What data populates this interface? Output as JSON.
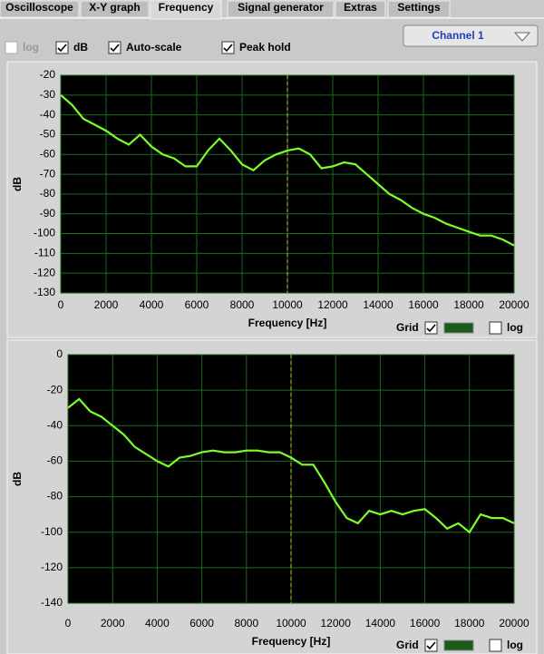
{
  "tabs": [
    {
      "label": "Oscilloscope",
      "active": false
    },
    {
      "label": "X-Y graph",
      "active": false
    },
    {
      "label": "Frequency",
      "active": true
    },
    {
      "label": "Signal generator",
      "active": false
    },
    {
      "label": "Extras",
      "active": false
    },
    {
      "label": "Settings",
      "active": false
    }
  ],
  "controls": [
    {
      "label": "log",
      "checked": false,
      "enabled": false
    },
    {
      "label": "dB",
      "checked": true,
      "enabled": true
    },
    {
      "label": "Auto-scale",
      "checked": true,
      "enabled": true
    },
    {
      "label": "Peak hold",
      "checked": true,
      "enabled": true
    }
  ],
  "channel_select": "Channel 1",
  "chart_data": [
    {
      "type": "line",
      "xlabel": "Frequency [Hz]",
      "ylabel": "dB",
      "color": "#7dff2a",
      "xlim": [
        0,
        20000
      ],
      "ylim": [
        -130,
        -20
      ],
      "xticks": [
        0,
        2000,
        4000,
        6000,
        8000,
        10000,
        12000,
        14000,
        16000,
        18000,
        20000
      ],
      "yticks": [
        -20,
        -30,
        -40,
        -50,
        -60,
        -70,
        -80,
        -90,
        -100,
        -110,
        -120,
        -130
      ],
      "grid": true,
      "cursor": 10000,
      "grid_option": {
        "label": "Grid",
        "checked": true
      },
      "log_option": {
        "label": "log",
        "checked": false
      },
      "x": [
        0,
        500,
        1000,
        1500,
        2000,
        2500,
        3000,
        3500,
        4000,
        4500,
        5000,
        5500,
        6000,
        6500,
        7000,
        7500,
        8000,
        8500,
        9000,
        9500,
        10000,
        10500,
        11000,
        11500,
        12000,
        12500,
        13000,
        13500,
        14000,
        14500,
        15000,
        15500,
        16000,
        16500,
        17000,
        17500,
        18000,
        18500,
        19000,
        19500,
        20000
      ],
      "values": [
        -30,
        -35,
        -42,
        -45,
        -48,
        -52,
        -55,
        -50,
        -56,
        -60,
        -62,
        -66,
        -66,
        -58,
        -52,
        -58,
        -65,
        -68,
        -63,
        -60,
        -58,
        -57,
        -60,
        -67,
        -66,
        -64,
        -65,
        -70,
        -75,
        -80,
        -83,
        -87,
        -90,
        -92,
        -95,
        -97,
        -99,
        -101,
        -101,
        -103,
        -106
      ]
    },
    {
      "type": "line",
      "xlabel": "Frequency [Hz]",
      "ylabel": "dB",
      "color": "#7dff2a",
      "xlim": [
        0,
        20000
      ],
      "ylim": [
        -140,
        0
      ],
      "xticks": [
        0,
        2000,
        4000,
        6000,
        8000,
        10000,
        12000,
        14000,
        16000,
        18000,
        20000
      ],
      "yticks": [
        0,
        -20,
        -40,
        -60,
        -80,
        -100,
        -120,
        -140
      ],
      "grid": true,
      "cursor": 10000,
      "grid_option": {
        "label": "Grid",
        "checked": true
      },
      "log_option": {
        "label": "log",
        "checked": false
      },
      "x": [
        0,
        500,
        1000,
        1500,
        2000,
        2500,
        3000,
        3500,
        4000,
        4500,
        5000,
        5500,
        6000,
        6500,
        7000,
        7500,
        8000,
        8500,
        9000,
        9500,
        10000,
        10500,
        11000,
        11500,
        12000,
        12500,
        13000,
        13500,
        14000,
        14500,
        15000,
        15500,
        16000,
        16500,
        17000,
        17500,
        18000,
        18500,
        19000,
        19500,
        20000
      ],
      "values": [
        -30,
        -25,
        -32,
        -35,
        -40,
        -45,
        -52,
        -56,
        -60,
        -63,
        -58,
        -57,
        -55,
        -54,
        -55,
        -55,
        -54,
        -54,
        -55,
        -55,
        -58,
        -62,
        -62,
        -72,
        -83,
        -92,
        -95,
        -88,
        -90,
        -88,
        -90,
        -88,
        -87,
        -92,
        -98,
        -95,
        -100,
        -90,
        -92,
        -92,
        -95
      ]
    }
  ]
}
